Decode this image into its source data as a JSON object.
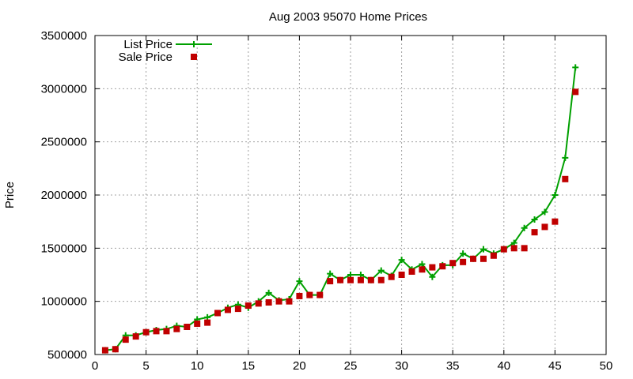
{
  "chart_data": {
    "type": "line",
    "title": "Aug 2003 95070 Home Prices",
    "xlabel": "",
    "ylabel": "Price",
    "xlim": [
      0,
      50
    ],
    "ylim": [
      500000,
      3500000
    ],
    "xticks": [
      "0",
      "5",
      "10",
      "15",
      "20",
      "25",
      "30",
      "35",
      "40",
      "45",
      "50"
    ],
    "yticks": [
      "500000",
      "1000000",
      "1500000",
      "2000000",
      "2500000",
      "3000000",
      "3500000"
    ],
    "grid": true,
    "legend_position": "top-left",
    "x": [
      1,
      2,
      3,
      4,
      5,
      6,
      7,
      8,
      9,
      10,
      11,
      12,
      13,
      14,
      15,
      16,
      17,
      18,
      19,
      20,
      21,
      22,
      23,
      24,
      25,
      26,
      27,
      28,
      29,
      30,
      31,
      32,
      33,
      34,
      35,
      36,
      37,
      38,
      39,
      40,
      41,
      42,
      43,
      44,
      45,
      46,
      47
    ],
    "series": [
      {
        "name": "List Price",
        "style": "line-cross",
        "color": "#00a000",
        "values": [
          540000,
          550000,
          680000,
          680000,
          710000,
          730000,
          740000,
          770000,
          760000,
          830000,
          850000,
          890000,
          940000,
          970000,
          940000,
          1000000,
          1080000,
          1010000,
          1020000,
          1190000,
          1060000,
          1060000,
          1260000,
          1200000,
          1250000,
          1250000,
          1200000,
          1290000,
          1240000,
          1390000,
          1300000,
          1350000,
          1230000,
          1340000,
          1340000,
          1450000,
          1400000,
          1490000,
          1450000,
          1490000,
          1550000,
          1690000,
          1770000,
          1840000,
          2000000,
          2350000,
          3200000
        ]
      },
      {
        "name": "Sale Price",
        "style": "square-marker",
        "color": "#c00000",
        "values": [
          540000,
          550000,
          640000,
          670000,
          710000,
          720000,
          720000,
          740000,
          760000,
          790000,
          800000,
          890000,
          920000,
          930000,
          960000,
          980000,
          990000,
          1000000,
          1000000,
          1050000,
          1060000,
          1060000,
          1190000,
          1200000,
          1200000,
          1200000,
          1200000,
          1200000,
          1230000,
          1250000,
          1280000,
          1300000,
          1320000,
          1330000,
          1360000,
          1370000,
          1400000,
          1400000,
          1430000,
          1490000,
          1500000,
          1500000,
          1650000,
          1700000,
          1750000,
          2150000,
          2970000
        ]
      }
    ]
  }
}
